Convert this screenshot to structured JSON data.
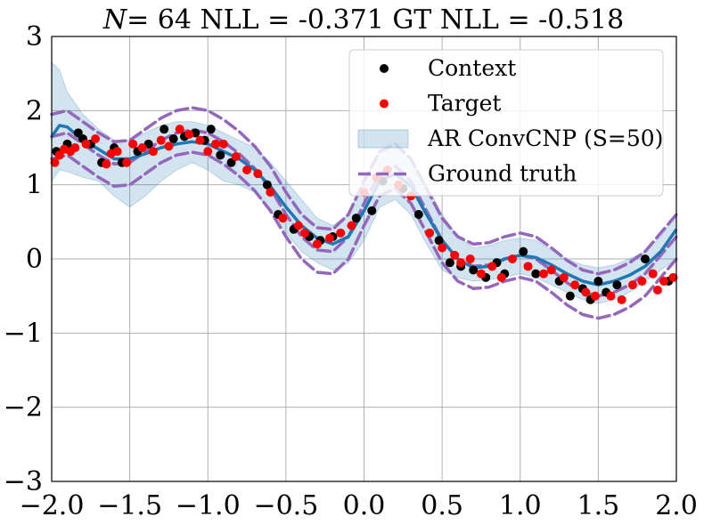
{
  "chart_data": {
    "type": "line",
    "title_parts": {
      "n_symbol": "N",
      "rest": "= 64 NLL = -0.371 GT NLL = -0.518"
    },
    "xlabel": "",
    "ylabel": "",
    "xlim": [
      -2.0,
      2.0
    ],
    "ylim": [
      -3,
      3
    ],
    "xticks": [
      "−2.0",
      "−1.5",
      "−1.0",
      "−0.5",
      "0.0",
      "0.5",
      "1.0",
      "1.5",
      "2.0"
    ],
    "xtick_values": [
      -2.0,
      -1.5,
      -1.0,
      -0.5,
      0.0,
      0.5,
      1.0,
      1.5,
      2.0
    ],
    "yticks": [
      "−3",
      "−2",
      "−1",
      "0",
      "1",
      "2",
      "3"
    ],
    "ytick_values": [
      -3,
      -2,
      -1,
      0,
      1,
      2,
      3
    ],
    "grid": true,
    "legend_position": "top-right",
    "legend": [
      {
        "label": "Context",
        "kind": "dot",
        "color": "#000000"
      },
      {
        "label": "Target",
        "kind": "dot",
        "color": "#ff0000"
      },
      {
        "label": "AR ConvCNP (S=50)",
        "kind": "band",
        "color": "#1f77b4"
      },
      {
        "label": "Ground truth",
        "kind": "dashed",
        "color": "#9467bd"
      }
    ],
    "colors": {
      "model_mean": "#1f77b4",
      "band": "#1f77b4",
      "ground_truth": "#9467bd",
      "context": "#000000",
      "target": "#ff0000"
    },
    "model_mean": {
      "x": [
        -2.0,
        -1.95,
        -1.9,
        -1.8,
        -1.7,
        -1.6,
        -1.5,
        -1.4,
        -1.3,
        -1.2,
        -1.1,
        -1.0,
        -0.9,
        -0.8,
        -0.7,
        -0.6,
        -0.5,
        -0.4,
        -0.3,
        -0.2,
        -0.1,
        0.0,
        0.1,
        0.2,
        0.3,
        0.4,
        0.5,
        0.6,
        0.7,
        0.8,
        0.9,
        1.0,
        1.1,
        1.2,
        1.3,
        1.4,
        1.5,
        1.6,
        1.7,
        1.8,
        1.9,
        2.0
      ],
      "y": [
        1.65,
        1.8,
        1.78,
        1.6,
        1.48,
        1.35,
        1.35,
        1.42,
        1.5,
        1.55,
        1.58,
        1.55,
        1.45,
        1.35,
        1.2,
        0.98,
        0.7,
        0.45,
        0.28,
        0.2,
        0.3,
        0.65,
        1.05,
        1.15,
        0.98,
        0.6,
        0.25,
        0.0,
        -0.12,
        -0.1,
        0.0,
        0.05,
        0.02,
        -0.08,
        -0.2,
        -0.3,
        -0.35,
        -0.3,
        -0.22,
        -0.1,
        0.1,
        0.4
      ]
    },
    "model_band": {
      "x": [
        -2.0,
        -1.95,
        -1.9,
        -1.8,
        -1.7,
        -1.6,
        -1.5,
        -1.4,
        -1.3,
        -1.2,
        -1.1,
        -1.0,
        -0.9,
        -0.8,
        -0.7,
        -0.6,
        -0.5,
        -0.4,
        -0.3,
        -0.2,
        -0.1,
        0.0,
        0.1,
        0.2,
        0.3,
        0.4,
        0.5,
        0.6,
        0.7,
        0.8,
        0.9,
        1.0,
        1.1,
        1.2,
        1.3,
        1.4,
        1.5,
        1.6,
        1.7,
        1.8,
        1.9,
        2.0
      ],
      "lower": [
        1.05,
        1.2,
        1.18,
        1.1,
        1.05,
        0.85,
        0.7,
        0.85,
        1.05,
        1.2,
        1.3,
        1.2,
        1.05,
        1.0,
        0.9,
        0.65,
        0.35,
        0.1,
        -0.05,
        -0.15,
        -0.05,
        0.25,
        0.7,
        0.8,
        0.6,
        0.2,
        -0.15,
        -0.25,
        -0.3,
        -0.28,
        -0.25,
        -0.2,
        -0.25,
        -0.35,
        -0.45,
        -0.55,
        -0.6,
        -0.55,
        -0.45,
        -0.3,
        -0.15,
        0.0
      ],
      "upper": [
        2.65,
        2.55,
        2.25,
        1.95,
        1.75,
        1.6,
        1.6,
        1.7,
        1.8,
        1.85,
        1.85,
        1.8,
        1.7,
        1.6,
        1.5,
        1.3,
        1.05,
        0.8,
        0.55,
        0.45,
        0.6,
        1.05,
        1.45,
        1.5,
        1.35,
        1.0,
        0.6,
        0.3,
        0.15,
        0.18,
        0.25,
        0.28,
        0.25,
        0.12,
        0.0,
        -0.08,
        -0.12,
        -0.08,
        0.0,
        0.1,
        0.3,
        0.6
      ]
    },
    "ground_truth": {
      "x": [
        -2.0,
        -1.9,
        -1.8,
        -1.7,
        -1.6,
        -1.5,
        -1.4,
        -1.3,
        -1.2,
        -1.1,
        -1.0,
        -0.9,
        -0.8,
        -0.7,
        -0.6,
        -0.5,
        -0.4,
        -0.3,
        -0.2,
        -0.1,
        0.0,
        0.1,
        0.2,
        0.3,
        0.4,
        0.5,
        0.6,
        0.7,
        0.8,
        0.9,
        1.0,
        1.1,
        1.2,
        1.3,
        1.4,
        1.5,
        1.6,
        1.7,
        1.8,
        1.9,
        2.0
      ],
      "mean": [
        1.65,
        1.7,
        1.55,
        1.4,
        1.28,
        1.3,
        1.45,
        1.6,
        1.7,
        1.74,
        1.7,
        1.58,
        1.42,
        1.22,
        0.95,
        0.6,
        0.3,
        0.12,
        0.1,
        0.3,
        0.75,
        1.15,
        1.25,
        1.05,
        0.65,
        0.25,
        0.0,
        -0.1,
        -0.08,
        0.0,
        0.05,
        0.0,
        -0.15,
        -0.32,
        -0.45,
        -0.5,
        -0.45,
        -0.35,
        -0.2,
        0.05,
        0.3
      ],
      "band_halfwidth": 0.3
    },
    "context": {
      "x": [
        -1.97,
        -1.9,
        -1.83,
        -1.8,
        -1.75,
        -1.68,
        -1.6,
        -1.55,
        -1.45,
        -1.38,
        -1.28,
        -1.22,
        -1.15,
        -1.08,
        -1.02,
        -0.98,
        -0.92,
        -0.85,
        -0.62,
        -0.55,
        -0.45,
        -0.35,
        -0.28,
        -0.2,
        -0.05,
        0.05,
        0.12,
        0.25,
        0.35,
        0.48,
        0.55,
        0.62,
        0.7,
        0.78,
        0.85,
        0.9,
        1.02,
        1.1,
        1.25,
        1.32,
        1.4,
        1.45,
        1.5,
        1.55,
        1.62,
        1.8,
        1.95
      ],
      "y": [
        1.45,
        1.55,
        1.7,
        1.62,
        1.55,
        1.3,
        1.5,
        1.3,
        1.45,
        1.55,
        1.75,
        1.62,
        1.65,
        1.7,
        1.6,
        1.75,
        1.4,
        1.3,
        1.0,
        0.6,
        0.4,
        0.3,
        0.25,
        0.3,
        0.55,
        0.65,
        1.05,
        0.95,
        0.6,
        0.25,
        -0.05,
        -0.1,
        -0.15,
        -0.25,
        -0.05,
        -0.2,
        0.1,
        -0.2,
        -0.3,
        -0.5,
        -0.4,
        -0.55,
        -0.3,
        -0.45,
        -0.35,
        0.0,
        -0.3
      ]
    },
    "target": {
      "x": [
        -1.98,
        -1.95,
        -1.92,
        -1.88,
        -1.85,
        -1.78,
        -1.72,
        -1.65,
        -1.62,
        -1.58,
        -1.52,
        -1.48,
        -1.42,
        -1.35,
        -1.3,
        -1.25,
        -1.18,
        -1.12,
        -1.05,
        -1.0,
        -0.95,
        -0.9,
        -0.82,
        -0.75,
        -0.68,
        -0.6,
        -0.52,
        -0.42,
        -0.38,
        -0.3,
        -0.22,
        -0.15,
        -0.08,
        0.0,
        0.08,
        0.15,
        0.22,
        0.3,
        0.42,
        0.5,
        0.58,
        0.62,
        0.68,
        0.75,
        0.82,
        0.88,
        0.95,
        1.05,
        1.15,
        1.2,
        1.28,
        1.35,
        1.42,
        1.48,
        1.58,
        1.65,
        1.72,
        1.78,
        1.85,
        1.88,
        1.92,
        1.98
      ],
      "y": [
        1.3,
        1.4,
        1.48,
        1.45,
        1.5,
        1.55,
        1.62,
        1.28,
        1.42,
        1.45,
        1.3,
        1.55,
        1.5,
        1.45,
        1.6,
        1.52,
        1.75,
        1.68,
        1.6,
        1.45,
        1.55,
        1.55,
        1.38,
        1.2,
        1.15,
        0.9,
        0.55,
        0.45,
        0.35,
        0.2,
        0.28,
        0.35,
        0.45,
        0.9,
        1.1,
        1.2,
        1.0,
        0.85,
        0.35,
        0.15,
        0.05,
        -0.05,
        0.0,
        -0.2,
        -0.1,
        -0.25,
        0.0,
        -0.1,
        -0.2,
        -0.15,
        -0.25,
        -0.35,
        -0.45,
        -0.5,
        -0.5,
        -0.55,
        -0.35,
        -0.3,
        -0.2,
        -0.42,
        -0.3,
        -0.25
      ]
    }
  }
}
